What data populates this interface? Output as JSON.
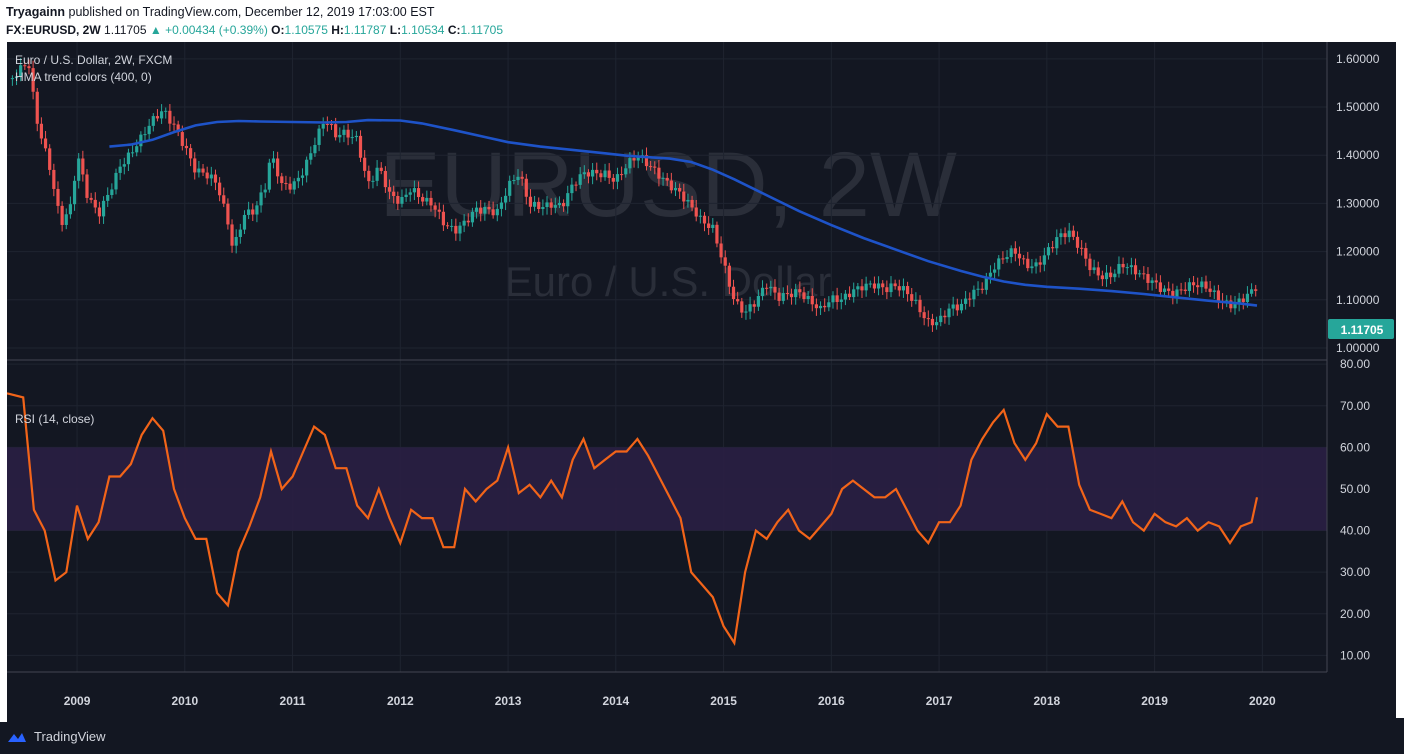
{
  "header": {
    "author": "Tryagainn",
    "published": "published on TradingView.com, December 12, 2019 17:03:00 EST",
    "symbol": "FX:EURUSD, 2W",
    "last": "1.11705",
    "change": "▲ +0.00434 (+0.39%)",
    "o_label": "O:",
    "o_value": "1.10575",
    "h_label": "H:",
    "h_value": "1.11787",
    "l_label": "L:",
    "l_value": "1.10534",
    "c_label": "C:",
    "c_value": "1.11705"
  },
  "legend": {
    "instrument": "Euro / U.S. Dollar, 2W, FXCM",
    "indicator": "HMA trend colors (400, 0)",
    "rsi": "RSI (14, close)"
  },
  "watermark": {
    "big": "EURUSD, 2W",
    "small": "Euro / U.S. Dollar"
  },
  "last_price_label": "1.11705",
  "footer": {
    "brand": "TradingView"
  },
  "colors": {
    "background": "#131722",
    "up": "#26a69a",
    "down": "#ef5350",
    "hma": "#1e53c8",
    "rsi": "#f26419",
    "rsi_band": "#2a1f44",
    "axis_text": "#d1d4dc",
    "grid": "#1f2430"
  },
  "chart_data": [
    {
      "type": "candlestick",
      "title": "Euro / U.S. Dollar, 2W, FXCM",
      "x_ticks": [
        "2009",
        "2010",
        "2011",
        "2012",
        "2013",
        "2014",
        "2015",
        "2016",
        "2017",
        "2018",
        "2019",
        "2020"
      ],
      "y_ticks": [
        "1.00000",
        "1.10000",
        "1.20000",
        "1.30000",
        "1.40000",
        "1.50000",
        "1.60000"
      ],
      "ylim": [
        0.975,
        1.635
      ],
      "xlim": [
        2008.35,
        2020.6
      ],
      "close_series": [
        [
          2008.4,
          1.56
        ],
        [
          2008.55,
          1.58
        ],
        [
          2008.62,
          1.47
        ],
        [
          2008.75,
          1.38
        ],
        [
          2008.85,
          1.27
        ],
        [
          2008.95,
          1.3
        ],
        [
          2009.0,
          1.4
        ],
        [
          2009.1,
          1.3
        ],
        [
          2009.2,
          1.27
        ],
        [
          2009.3,
          1.33
        ],
        [
          2009.4,
          1.39
        ],
        [
          2009.5,
          1.41
        ],
        [
          2009.6,
          1.43
        ],
        [
          2009.7,
          1.46
        ],
        [
          2009.8,
          1.49
        ],
        [
          2009.9,
          1.47
        ],
        [
          2010.0,
          1.43
        ],
        [
          2010.1,
          1.37
        ],
        [
          2010.2,
          1.35
        ],
        [
          2010.3,
          1.33
        ],
        [
          2010.4,
          1.26
        ],
        [
          2010.45,
          1.21
        ],
        [
          2010.55,
          1.29
        ],
        [
          2010.65,
          1.29
        ],
        [
          2010.75,
          1.33
        ],
        [
          2010.8,
          1.39
        ],
        [
          2010.9,
          1.33
        ],
        [
          2011.0,
          1.34
        ],
        [
          2011.1,
          1.38
        ],
        [
          2011.2,
          1.43
        ],
        [
          2011.3,
          1.47
        ],
        [
          2011.4,
          1.43
        ],
        [
          2011.5,
          1.44
        ],
        [
          2011.6,
          1.44
        ],
        [
          2011.7,
          1.35
        ],
        [
          2011.8,
          1.38
        ],
        [
          2011.9,
          1.31
        ],
        [
          2012.0,
          1.29
        ],
        [
          2012.1,
          1.33
        ],
        [
          2012.2,
          1.32
        ],
        [
          2012.3,
          1.31
        ],
        [
          2012.4,
          1.26
        ],
        [
          2012.5,
          1.23
        ],
        [
          2012.6,
          1.25
        ],
        [
          2012.7,
          1.29
        ],
        [
          2012.8,
          1.3
        ],
        [
          2012.9,
          1.29
        ],
        [
          2013.0,
          1.33
        ],
        [
          2013.1,
          1.35
        ],
        [
          2013.2,
          1.29
        ],
        [
          2013.3,
          1.3
        ],
        [
          2013.4,
          1.31
        ],
        [
          2013.5,
          1.3
        ],
        [
          2013.6,
          1.33
        ],
        [
          2013.7,
          1.35
        ],
        [
          2013.8,
          1.36
        ],
        [
          2013.9,
          1.37
        ],
        [
          2014.0,
          1.36
        ],
        [
          2014.1,
          1.38
        ],
        [
          2014.2,
          1.39
        ],
        [
          2014.3,
          1.37
        ],
        [
          2014.4,
          1.36
        ],
        [
          2014.5,
          1.35
        ],
        [
          2014.6,
          1.33
        ],
        [
          2014.7,
          1.29
        ],
        [
          2014.8,
          1.25
        ],
        [
          2014.9,
          1.24
        ],
        [
          2015.0,
          1.18
        ],
        [
          2015.1,
          1.11
        ],
        [
          2015.2,
          1.08
        ],
        [
          2015.3,
          1.09
        ],
        [
          2015.4,
          1.12
        ],
        [
          2015.5,
          1.1
        ],
        [
          2015.6,
          1.12
        ],
        [
          2015.7,
          1.13
        ],
        [
          2015.8,
          1.1
        ],
        [
          2015.9,
          1.07
        ],
        [
          2016.0,
          1.09
        ],
        [
          2016.1,
          1.1
        ],
        [
          2016.2,
          1.13
        ],
        [
          2016.3,
          1.14
        ],
        [
          2016.4,
          1.13
        ],
        [
          2016.5,
          1.11
        ],
        [
          2016.6,
          1.12
        ],
        [
          2016.7,
          1.12
        ],
        [
          2016.8,
          1.1
        ],
        [
          2016.9,
          1.06
        ],
        [
          2017.0,
          1.05
        ],
        [
          2017.1,
          1.07
        ],
        [
          2017.2,
          1.08
        ],
        [
          2017.3,
          1.12
        ],
        [
          2017.4,
          1.14
        ],
        [
          2017.5,
          1.17
        ],
        [
          2017.6,
          1.18
        ],
        [
          2017.7,
          1.19
        ],
        [
          2017.8,
          1.17
        ],
        [
          2017.9,
          1.18
        ],
        [
          2018.0,
          1.21
        ],
        [
          2018.1,
          1.23
        ],
        [
          2018.2,
          1.23
        ],
        [
          2018.3,
          1.2
        ],
        [
          2018.4,
          1.17
        ],
        [
          2018.5,
          1.16
        ],
        [
          2018.6,
          1.16
        ],
        [
          2018.7,
          1.17
        ],
        [
          2018.8,
          1.15
        ],
        [
          2018.9,
          1.14
        ],
        [
          2019.0,
          1.14
        ],
        [
          2019.1,
          1.13
        ],
        [
          2019.2,
          1.12
        ],
        [
          2019.3,
          1.12
        ],
        [
          2019.4,
          1.12
        ],
        [
          2019.5,
          1.12
        ],
        [
          2019.6,
          1.11
        ],
        [
          2019.7,
          1.1
        ],
        [
          2019.8,
          1.1
        ],
        [
          2019.9,
          1.107
        ],
        [
          2019.95,
          1.117
        ]
      ],
      "hma_series": [
        [
          2009.3,
          1.418
        ],
        [
          2009.5,
          1.422
        ],
        [
          2009.7,
          1.432
        ],
        [
          2009.9,
          1.448
        ],
        [
          2010.1,
          1.462
        ],
        [
          2010.3,
          1.469
        ],
        [
          2010.5,
          1.471
        ],
        [
          2010.7,
          1.47
        ],
        [
          2011.0,
          1.469
        ],
        [
          2011.3,
          1.468
        ],
        [
          2011.5,
          1.469
        ],
        [
          2011.7,
          1.473
        ],
        [
          2012.0,
          1.472
        ],
        [
          2012.2,
          1.466
        ],
        [
          2012.5,
          1.452
        ],
        [
          2012.8,
          1.437
        ],
        [
          2013.0,
          1.427
        ],
        [
          2013.3,
          1.418
        ],
        [
          2013.6,
          1.411
        ],
        [
          2013.9,
          1.404
        ],
        [
          2014.1,
          1.399
        ],
        [
          2014.3,
          1.396
        ],
        [
          2014.5,
          1.393
        ],
        [
          2014.7,
          1.386
        ],
        [
          2014.9,
          1.37
        ],
        [
          2015.1,
          1.35
        ],
        [
          2015.3,
          1.328
        ],
        [
          2015.5,
          1.306
        ],
        [
          2015.7,
          1.284
        ],
        [
          2016.0,
          1.255
        ],
        [
          2016.3,
          1.228
        ],
        [
          2016.6,
          1.204
        ],
        [
          2016.9,
          1.18
        ],
        [
          2017.2,
          1.16
        ],
        [
          2017.4,
          1.148
        ],
        [
          2017.6,
          1.138
        ],
        [
          2017.8,
          1.131
        ],
        [
          2018.0,
          1.127
        ],
        [
          2018.3,
          1.123
        ],
        [
          2018.6,
          1.118
        ],
        [
          2018.9,
          1.112
        ],
        [
          2019.2,
          1.105
        ],
        [
          2019.5,
          1.098
        ],
        [
          2019.8,
          1.092
        ],
        [
          2019.95,
          1.088
        ]
      ]
    },
    {
      "type": "line",
      "title": "RSI (14, close)",
      "y_ticks": [
        "10.00",
        "20.00",
        "30.00",
        "40.00",
        "50.00",
        "60.00",
        "70.00",
        "80.00"
      ],
      "ylim": [
        6,
        81
      ],
      "band": [
        40,
        60
      ],
      "series": [
        [
          2008.35,
          73
        ],
        [
          2008.5,
          72
        ],
        [
          2008.6,
          45
        ],
        [
          2008.7,
          40
        ],
        [
          2008.8,
          28
        ],
        [
          2008.9,
          30
        ],
        [
          2009.0,
          46
        ],
        [
          2009.1,
          38
        ],
        [
          2009.2,
          42
        ],
        [
          2009.3,
          53
        ],
        [
          2009.4,
          53
        ],
        [
          2009.5,
          56
        ],
        [
          2009.6,
          63
        ],
        [
          2009.7,
          67
        ],
        [
          2009.8,
          64
        ],
        [
          2009.9,
          50
        ],
        [
          2010.0,
          43
        ],
        [
          2010.1,
          38
        ],
        [
          2010.2,
          38
        ],
        [
          2010.3,
          25
        ],
        [
          2010.4,
          22
        ],
        [
          2010.5,
          35
        ],
        [
          2010.6,
          41
        ],
        [
          2010.7,
          48
        ],
        [
          2010.8,
          59
        ],
        [
          2010.9,
          50
        ],
        [
          2011.0,
          53
        ],
        [
          2011.1,
          59
        ],
        [
          2011.2,
          65
        ],
        [
          2011.3,
          63
        ],
        [
          2011.4,
          55
        ],
        [
          2011.5,
          55
        ],
        [
          2011.6,
          46
        ],
        [
          2011.7,
          43
        ],
        [
          2011.8,
          50
        ],
        [
          2011.9,
          43
        ],
        [
          2012.0,
          37
        ],
        [
          2012.1,
          45
        ],
        [
          2012.2,
          43
        ],
        [
          2012.3,
          43
        ],
        [
          2012.4,
          36
        ],
        [
          2012.5,
          36
        ],
        [
          2012.6,
          50
        ],
        [
          2012.7,
          47
        ],
        [
          2012.8,
          50
        ],
        [
          2012.9,
          52
        ],
        [
          2013.0,
          60
        ],
        [
          2013.1,
          49
        ],
        [
          2013.2,
          51
        ],
        [
          2013.3,
          48
        ],
        [
          2013.4,
          52
        ],
        [
          2013.5,
          48
        ],
        [
          2013.6,
          57
        ],
        [
          2013.7,
          62
        ],
        [
          2013.8,
          55
        ],
        [
          2013.9,
          57
        ],
        [
          2014.0,
          59
        ],
        [
          2014.1,
          59
        ],
        [
          2014.2,
          62
        ],
        [
          2014.3,
          58
        ],
        [
          2014.4,
          53
        ],
        [
          2014.5,
          48
        ],
        [
          2014.6,
          43
        ],
        [
          2014.7,
          30
        ],
        [
          2014.8,
          27
        ],
        [
          2014.9,
          24
        ],
        [
          2015.0,
          17
        ],
        [
          2015.1,
          13
        ],
        [
          2015.2,
          30
        ],
        [
          2015.3,
          40
        ],
        [
          2015.4,
          38
        ],
        [
          2015.5,
          42
        ],
        [
          2015.6,
          45
        ],
        [
          2015.7,
          40
        ],
        [
          2015.8,
          38
        ],
        [
          2015.9,
          41
        ],
        [
          2016.0,
          44
        ],
        [
          2016.1,
          50
        ],
        [
          2016.2,
          52
        ],
        [
          2016.3,
          50
        ],
        [
          2016.4,
          48
        ],
        [
          2016.5,
          48
        ],
        [
          2016.6,
          50
        ],
        [
          2016.7,
          45
        ],
        [
          2016.8,
          40
        ],
        [
          2016.9,
          37
        ],
        [
          2017.0,
          42
        ],
        [
          2017.1,
          42
        ],
        [
          2017.2,
          46
        ],
        [
          2017.3,
          57
        ],
        [
          2017.4,
          62
        ],
        [
          2017.5,
          66
        ],
        [
          2017.6,
          69
        ],
        [
          2017.7,
          61
        ],
        [
          2017.8,
          57
        ],
        [
          2017.9,
          61
        ],
        [
          2018.0,
          68
        ],
        [
          2018.1,
          65
        ],
        [
          2018.2,
          65
        ],
        [
          2018.3,
          51
        ],
        [
          2018.4,
          45
        ],
        [
          2018.5,
          44
        ],
        [
          2018.6,
          43
        ],
        [
          2018.7,
          47
        ],
        [
          2018.8,
          42
        ],
        [
          2018.9,
          40
        ],
        [
          2019.0,
          44
        ],
        [
          2019.1,
          42
        ],
        [
          2019.2,
          41
        ],
        [
          2019.3,
          43
        ],
        [
          2019.4,
          40
        ],
        [
          2019.5,
          42
        ],
        [
          2019.6,
          41
        ],
        [
          2019.7,
          37
        ],
        [
          2019.8,
          41
        ],
        [
          2019.9,
          42
        ],
        [
          2019.95,
          48
        ]
      ]
    }
  ]
}
